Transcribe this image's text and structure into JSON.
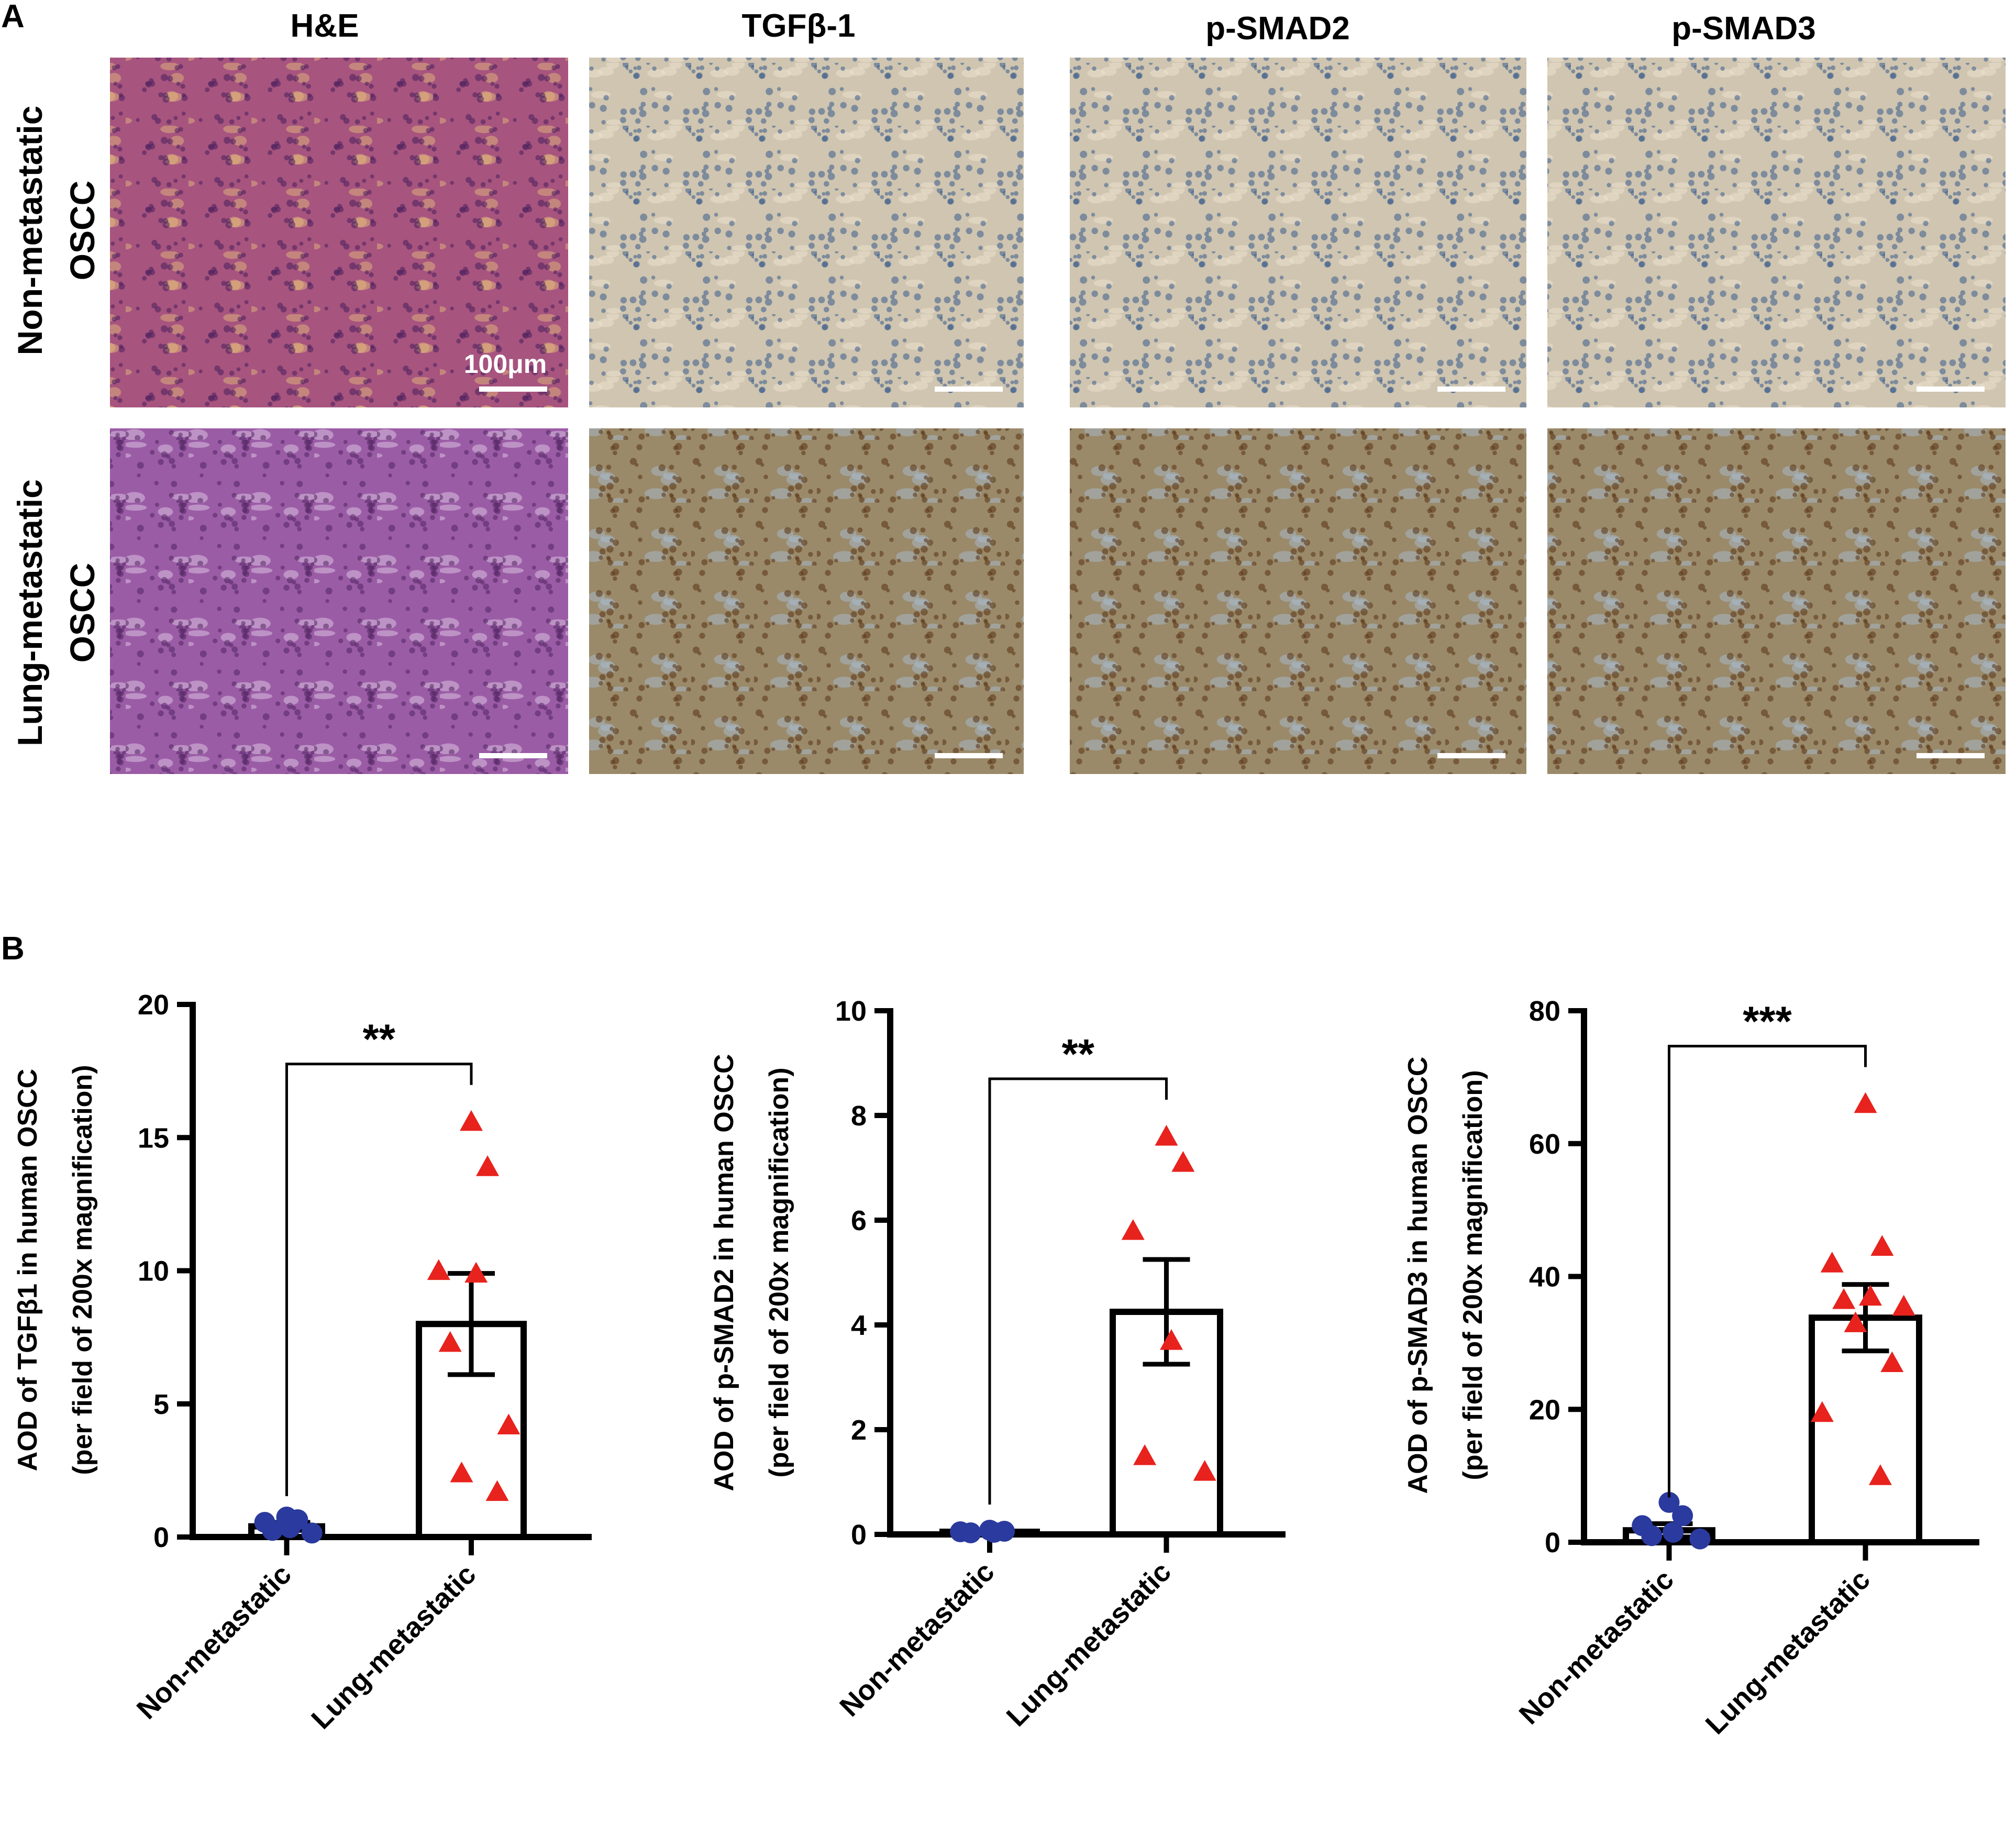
{
  "panel_a": {
    "letter": "A",
    "columns": [
      "H&E",
      "TGFβ-1",
      "p-SMAD2",
      "p-SMAD3"
    ],
    "rows": [
      {
        "line1": "Non-metastatic",
        "line2": "OSCC"
      },
      {
        "line1": "Lung-metastatic",
        "line2": "OSCC"
      }
    ],
    "scale_bar_label": "100μm",
    "tile_colors": {
      "he_top": "#a7547f",
      "he_bottom": "#9b5ca6",
      "ihc_top": "#cfc5b0",
      "ihc_bottom": "#9a8a6a",
      "nucleus_blue": "#3a5a8c",
      "nucleus_brown": "#5d3a1a",
      "he_nucleus": "#4b1f5c"
    }
  },
  "panel_b": {
    "letter": "B"
  },
  "chart_data": [
    {
      "type": "bar",
      "categories": [
        "Non-metastatic",
        "Lung-metastatic"
      ],
      "ylabel_line1": "AOD of TGFβ1 in human OSCC",
      "ylabel_line2": "(per field of 200x magnification)",
      "ylim": [
        0,
        20
      ],
      "yticks": [
        0,
        5,
        10,
        15,
        20
      ],
      "means": [
        0.4,
        8.0
      ],
      "sem": [
        0.15,
        1.9
      ],
      "points": [
        [
          0.75,
          0.65,
          0.55,
          0.35,
          0.25,
          0.15
        ],
        [
          15.6,
          13.9,
          10.0,
          9.9,
          7.3,
          4.2,
          2.4,
          1.7
        ]
      ],
      "significance": "**",
      "marker_colors": [
        "#2b3a9e",
        "#e8221d"
      ]
    },
    {
      "type": "bar",
      "categories": [
        "Non-metastatic",
        "Lung-metastatic"
      ],
      "ylabel_line1": "AOD of p-SMAD2 in human OSCC",
      "ylabel_line2": "(per field of 200x magnification)",
      "ylim": [
        0,
        10
      ],
      "yticks": [
        0,
        2,
        4,
        6,
        8,
        10
      ],
      "means": [
        0.05,
        4.25
      ],
      "sem": [
        0.02,
        1.0
      ],
      "points": [
        [
          0.08,
          0.06,
          0.05,
          0.04,
          0.03
        ],
        [
          7.6,
          7.1,
          5.8,
          3.7,
          1.5,
          1.2
        ]
      ],
      "significance": "**",
      "marker_colors": [
        "#2b3a9e",
        "#e8221d"
      ]
    },
    {
      "type": "bar",
      "categories": [
        "Non-metastatic",
        "Lung-metastatic"
      ],
      "ylabel_line1": "AOD of p-SMAD3 in human OSCC",
      "ylabel_line2": "(per field of 200x magnification)",
      "ylim": [
        0,
        80
      ],
      "yticks": [
        0,
        20,
        40,
        60,
        80
      ],
      "means": [
        1.8,
        33.8
      ],
      "sem": [
        1.0,
        5.0
      ],
      "points": [
        [
          6.0,
          4.0,
          2.5,
          1.5,
          1.0,
          0.5
        ],
        [
          66.0,
          44.5,
          42.0,
          37.0,
          36.5,
          35.5,
          33.0,
          27.0,
          19.5,
          10.0
        ]
      ],
      "significance": "***",
      "marker_colors": [
        "#2b3a9e",
        "#e8221d"
      ]
    }
  ]
}
